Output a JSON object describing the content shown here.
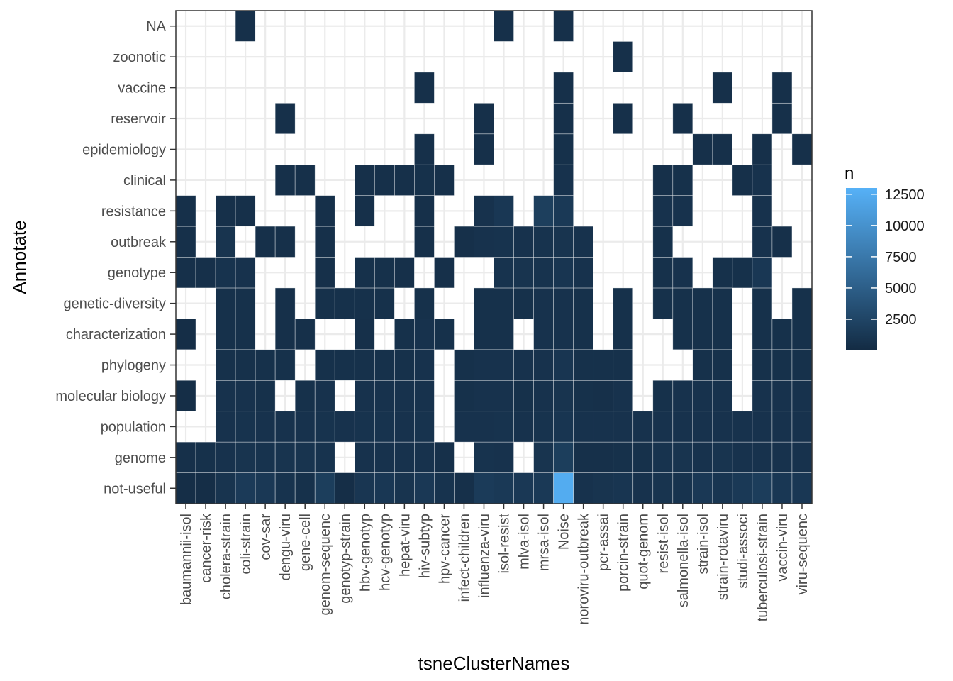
{
  "chart_data": {
    "type": "heatmap",
    "title": "",
    "xlabel": "tsneClusterNames",
    "ylabel": "Annotate",
    "x_categories": [
      "baumannii-isol",
      "cancer-risk",
      "cholera-strain",
      "coli-strain",
      "cov-sar",
      "dengu-viru",
      "gene-cell",
      "genom-sequenc",
      "genotyp-strain",
      "hbv-genotyp",
      "hcv-genotyp",
      "hepat-viru",
      "hiv-subtyp",
      "hpv-cancer",
      "infect-children",
      "influenza-viru",
      "isol-resist",
      "mlva-isol",
      "mrsa-isol",
      "Noise",
      "noroviru-outbreak",
      "pcr-assai",
      "porcin-strain",
      "quot-genom",
      "resist-isol",
      "salmonella-isol",
      "strain-isol",
      "strain-rotaviru",
      "studi-associ",
      "tuberculosi-strain",
      "vaccin-viru",
      "viru-sequenc"
    ],
    "y_categories": [
      "not-useful",
      "genome",
      "population",
      "molecular biology",
      "phylogeny",
      "characterization",
      "genetic-diversity",
      "genotype",
      "outbreak",
      "resistance",
      "clinical",
      "epidemiology",
      "reservoir",
      "vaccine",
      "zoonotic",
      "NA"
    ],
    "cells": [
      [
        300,
        300,
        900,
        1500,
        1300,
        800,
        600,
        1800,
        300,
        1100,
        1200,
        900,
        1300,
        800,
        500,
        1600,
        1400,
        1300,
        1400,
        12500,
        700,
        900,
        1000,
        700,
        900,
        800,
        1300,
        1000,
        1400,
        1700,
        1200,
        1200
      ],
      [
        500,
        600,
        700,
        900,
        800,
        900,
        900,
        800,
        null,
        700,
        700,
        700,
        700,
        500,
        null,
        800,
        700,
        null,
        900,
        1800,
        500,
        500,
        600,
        600,
        800,
        900,
        700,
        900,
        700,
        700,
        700,
        700
      ],
      [
        null,
        null,
        700,
        800,
        700,
        700,
        700,
        800,
        700,
        800,
        800,
        700,
        800,
        null,
        700,
        700,
        800,
        700,
        800,
        1000,
        700,
        700,
        700,
        700,
        700,
        700,
        700,
        700,
        700,
        700,
        700,
        700
      ],
      [
        300,
        null,
        700,
        700,
        600,
        null,
        600,
        700,
        null,
        700,
        700,
        700,
        700,
        null,
        600,
        700,
        700,
        600,
        700,
        900,
        600,
        500,
        700,
        null,
        600,
        700,
        700,
        700,
        null,
        700,
        700,
        700
      ],
      [
        null,
        null,
        600,
        600,
        600,
        600,
        null,
        600,
        600,
        600,
        600,
        600,
        700,
        null,
        600,
        700,
        700,
        700,
        700,
        1000,
        600,
        600,
        600,
        null,
        null,
        null,
        600,
        600,
        null,
        600,
        600,
        600
      ],
      [
        300,
        null,
        600,
        600,
        null,
        500,
        500,
        null,
        null,
        500,
        null,
        600,
        700,
        600,
        null,
        600,
        600,
        null,
        700,
        700,
        600,
        null,
        600,
        null,
        null,
        600,
        600,
        600,
        null,
        600,
        600,
        600
      ],
      [
        null,
        null,
        600,
        600,
        null,
        500,
        null,
        600,
        600,
        600,
        600,
        null,
        600,
        null,
        null,
        600,
        600,
        600,
        700,
        700,
        600,
        null,
        600,
        null,
        600,
        600,
        600,
        600,
        null,
        600,
        null,
        600
      ],
      [
        500,
        500,
        800,
        700,
        null,
        null,
        null,
        500,
        null,
        600,
        600,
        500,
        null,
        500,
        null,
        null,
        800,
        900,
        800,
        1000,
        700,
        null,
        null,
        null,
        600,
        700,
        null,
        600,
        600,
        1200,
        null,
        null
      ],
      [
        500,
        null,
        900,
        null,
        500,
        500,
        null,
        500,
        null,
        null,
        null,
        null,
        500,
        null,
        500,
        700,
        800,
        700,
        800,
        900,
        700,
        null,
        null,
        null,
        600,
        null,
        null,
        null,
        null,
        700,
        500,
        null
      ],
      [
        500,
        null,
        500,
        500,
        null,
        null,
        null,
        500,
        null,
        500,
        null,
        null,
        500,
        null,
        null,
        700,
        1200,
        null,
        1900,
        1400,
        null,
        null,
        null,
        null,
        700,
        700,
        null,
        null,
        null,
        700,
        null,
        null
      ],
      [
        null,
        null,
        null,
        null,
        null,
        500,
        500,
        null,
        null,
        500,
        500,
        500,
        600,
        500,
        null,
        null,
        null,
        null,
        null,
        700,
        null,
        null,
        null,
        null,
        500,
        600,
        null,
        null,
        500,
        700,
        null,
        null
      ],
      [
        null,
        null,
        null,
        null,
        null,
        null,
        null,
        null,
        null,
        null,
        null,
        null,
        500,
        null,
        null,
        500,
        null,
        null,
        null,
        600,
        null,
        null,
        null,
        null,
        null,
        null,
        500,
        500,
        null,
        500,
        null,
        500
      ],
      [
        null,
        null,
        null,
        null,
        null,
        500,
        null,
        null,
        null,
        null,
        null,
        null,
        null,
        null,
        null,
        500,
        null,
        null,
        null,
        500,
        null,
        null,
        500,
        null,
        null,
        500,
        null,
        null,
        null,
        null,
        500,
        null
      ],
      [
        null,
        null,
        null,
        null,
        null,
        null,
        null,
        null,
        null,
        null,
        null,
        null,
        500,
        null,
        null,
        null,
        null,
        null,
        null,
        500,
        null,
        null,
        null,
        null,
        null,
        null,
        null,
        500,
        null,
        null,
        500,
        null
      ],
      [
        null,
        null,
        null,
        null,
        null,
        null,
        null,
        null,
        null,
        null,
        null,
        null,
        null,
        null,
        null,
        null,
        null,
        null,
        null,
        null,
        null,
        null,
        500,
        null,
        null,
        null,
        null,
        null,
        null,
        null,
        null,
        null
      ],
      [
        null,
        null,
        null,
        500,
        null,
        null,
        null,
        null,
        null,
        null,
        null,
        null,
        null,
        null,
        null,
        null,
        500,
        null,
        null,
        500,
        null,
        null,
        null,
        null,
        null,
        null,
        null,
        null,
        null,
        null,
        null,
        null
      ]
    ],
    "color_low": "#132B43",
    "color_high": "#56B1F7",
    "value_range": [
      1,
      13000
    ],
    "grid": true,
    "legend": {
      "title": "n",
      "position": "right",
      "labels": [
        "12500",
        "10000",
        "7500",
        "5000",
        "2500"
      ],
      "values": [
        12500,
        10000,
        7500,
        5000,
        2500
      ]
    }
  }
}
